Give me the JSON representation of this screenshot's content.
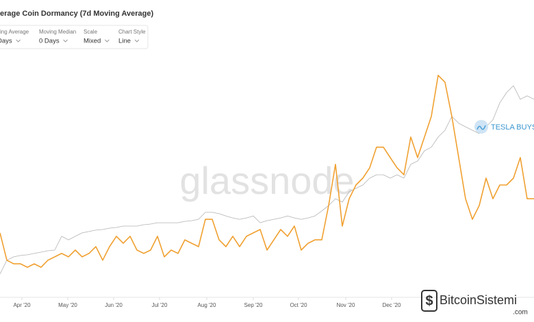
{
  "chart_data": {
    "type": "line",
    "title": "erage Coin Dormancy (7d Moving Average)",
    "controls": [
      {
        "label": "ving Average",
        "value": "Days"
      },
      {
        "label": "Moving Median",
        "value": "0 Days"
      },
      {
        "label": "Scale",
        "value": "Mixed"
      },
      {
        "label": "Chart Style",
        "value": "Line"
      }
    ],
    "watermark": "glassnode",
    "annotation": "TESLA BUYS",
    "site_logo": {
      "name": "BitcoinSistemi",
      "domain": ".com"
    },
    "xlim": [
      0,
      78
    ],
    "xticks": [
      {
        "value": 3.2,
        "label": "Apr '20"
      },
      {
        "value": 9.9,
        "label": "May '20"
      },
      {
        "value": 16.6,
        "label": "Jun '20"
      },
      {
        "value": 23.3,
        "label": "Jul '20"
      },
      {
        "value": 30.2,
        "label": "Aug '20"
      },
      {
        "value": 37,
        "label": "Sep '20"
      },
      {
        "value": 43.6,
        "label": "Oct '20"
      },
      {
        "value": 50.5,
        "label": "Nov '20"
      },
      {
        "value": 57.2,
        "label": "Dec '20"
      }
    ],
    "ylim": [
      0,
      100
    ],
    "grid": false,
    "series": [
      {
        "color": "#b3b3b3",
        "values": [
          9.1,
          15.2,
          16.7,
          17.3,
          17.6,
          18.2,
          18.8,
          19.4,
          19.7,
          25.8,
          24.2,
          25.8,
          27.3,
          27.9,
          28.5,
          28.8,
          29.4,
          29.7,
          30.3,
          30.3,
          30.3,
          30.9,
          31.2,
          31.8,
          31.8,
          31.8,
          31.8,
          32.4,
          32.7,
          33.3,
          36.4,
          36.4,
          35.8,
          34.8,
          33.9,
          33.3,
          33.9,
          34.8,
          31.8,
          32.7,
          33.3,
          33.9,
          34.8,
          33.9,
          33.3,
          33.9,
          34.8,
          37,
          39.4,
          42.4,
          40.9,
          45.5,
          47,
          48.5,
          51.5,
          53,
          53,
          51.5,
          53,
          51.5,
          57.6,
          59.1,
          63.6,
          65.2,
          69.7,
          72.7,
          78.8,
          75.8,
          74.2,
          72.7,
          71.2,
          74.2,
          77.3,
          84.8,
          89.4,
          92.4,
          86.4,
          87.9,
          86.4
        ]
      },
      {
        "color": "#f0a030",
        "values": [
          27.3,
          15.2,
          13.6,
          13.6,
          12.1,
          13.6,
          12.1,
          15.2,
          16.7,
          18.2,
          16.7,
          19.7,
          16.7,
          18.2,
          21.2,
          15.2,
          21.2,
          25.8,
          22.7,
          25.8,
          19.7,
          18.2,
          19.7,
          25.8,
          16.7,
          19.7,
          18.2,
          24.2,
          22.7,
          21.2,
          33.3,
          33.3,
          24.2,
          21.2,
          25.8,
          21.2,
          25.8,
          27.3,
          28.8,
          19.7,
          24.2,
          28.8,
          25.8,
          30.3,
          19.7,
          22.7,
          24.2,
          24.2,
          39.4,
          57.6,
          30.3,
          42.4,
          48.5,
          51.5,
          56.1,
          65.2,
          65.2,
          60.6,
          56.1,
          53,
          69.7,
          60.6,
          69.7,
          78.8,
          97,
          93.9,
          78.8,
          60.6,
          42.4,
          33.3,
          39.4,
          51.5,
          42.4,
          48.5,
          48.5,
          51.5,
          60.6,
          42.4,
          42.4
        ]
      }
    ]
  }
}
